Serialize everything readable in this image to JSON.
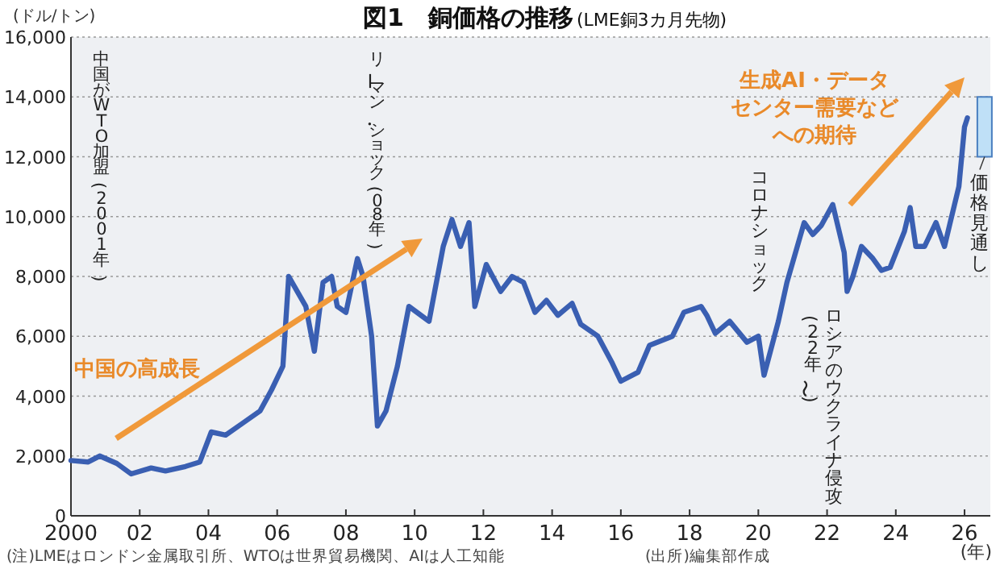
{
  "chart_data": {
    "type": "line",
    "title": "図1　銅価格の推移",
    "subtitle": "(LME銅3カ月先物)",
    "ylabel": "(ドル/トン)",
    "xlabel": "(年)",
    "annotations": [
      "中国がWTO加盟(2001年)",
      "リーマン・ショック(08年)",
      "コロナショック",
      "ロシアのウクライナ侵攻",
      "(22年〜)",
      "中国の高成長",
      "生成AI・データセンター需要などへの期待",
      "(注)LMEはロンドン金属取引所、WTOは世界貿易機関、AIは人工知能",
      "(出所)編集部作成"
    ],
    "xlim": [
      "2000",
      "2026-10"
    ],
    "xticks": [
      {
        "value": "2000",
        "label": "2000"
      },
      {
        "value": "2002",
        "label": "02"
      },
      {
        "value": "2004",
        "label": "04"
      },
      {
        "value": "2006",
        "label": "06"
      },
      {
        "value": "2008",
        "label": "08"
      },
      {
        "value": "2010",
        "label": "10"
      },
      {
        "value": "2012",
        "label": "12"
      },
      {
        "value": "2014",
        "label": "14"
      },
      {
        "value": "2016",
        "label": "16"
      },
      {
        "value": "2018",
        "label": "18"
      },
      {
        "value": "2020",
        "label": "20"
      },
      {
        "value": "2022",
        "label": "22"
      },
      {
        "value": "2024",
        "label": "24"
      },
      {
        "value": "2026",
        "label": "26"
      }
    ],
    "ylim": [
      0,
      16000
    ],
    "yticks": [
      {
        "value": 0,
        "label": "0"
      },
      {
        "value": 2000,
        "label": "2,000"
      },
      {
        "value": 4000,
        "label": "4,000"
      },
      {
        "value": 6000,
        "label": "6,000"
      },
      {
        "value": 8000,
        "label": "8,000"
      },
      {
        "value": 10000,
        "label": "10,000"
      },
      {
        "value": 12000,
        "label": "12,000"
      },
      {
        "value": 14000,
        "label": "14,000"
      },
      {
        "value": 16000,
        "label": "16,000"
      }
    ],
    "grid": "y",
    "legend": false,
    "series": [
      {
        "color": "#3a5fb2",
        "x": [
          "2000-01",
          "2000-07",
          "2000-11",
          "2001-05",
          "2001-10",
          "2002-05",
          "2002-10",
          "2003-05",
          "2003-10",
          "2004-02",
          "2004-07",
          "2005-01",
          "2005-07",
          "2005-11",
          "2006-03",
          "2006-05",
          "2006-08",
          "2006-11",
          "2007-02",
          "2007-05",
          "2007-08",
          "2007-10",
          "2008-01",
          "2008-05",
          "2008-07",
          "2008-10",
          "2008-12",
          "2009-03",
          "2009-07",
          "2009-11",
          "2010-06",
          "2010-08",
          "2010-11",
          "2011-02",
          "2011-05",
          "2011-08",
          "2011-10",
          "2012-02",
          "2012-07",
          "2012-11",
          "2013-03",
          "2013-07",
          "2013-11",
          "2014-03",
          "2014-08",
          "2014-11",
          "2015-05",
          "2015-10",
          "2016-01",
          "2016-07",
          "2016-11",
          "2017-07",
          "2017-11",
          "2018-05",
          "2018-07",
          "2018-10",
          "2019-03",
          "2019-09",
          "2020-01",
          "2020-03",
          "2020-08",
          "2020-11",
          "2021-05",
          "2021-08",
          "2021-11",
          "2022-03",
          "2022-07",
          "2022-08",
          "2022-10",
          "2023-01",
          "2023-05",
          "2023-08",
          "2023-11",
          "2024-04",
          "2024-06",
          "2024-08",
          "2024-11",
          "2025-03",
          "2025-06",
          "2025-08",
          "2025-11",
          "2026-01",
          "2026-02"
        ],
        "values": [
          1850,
          1800,
          2000,
          1750,
          1400,
          1600,
          1500,
          1650,
          1800,
          2800,
          2700,
          3100,
          3500,
          4200,
          5000,
          8000,
          7500,
          7000,
          5500,
          7800,
          8000,
          7000,
          6800,
          8600,
          8000,
          6000,
          3000,
          3500,
          5000,
          7000,
          6500,
          7500,
          9000,
          9900,
          9000,
          9800,
          7000,
          8400,
          7500,
          8000,
          7800,
          6800,
          7200,
          6700,
          7100,
          6400,
          6000,
          5100,
          4500,
          4800,
          5700,
          6000,
          6800,
          7000,
          6700,
          6100,
          6500,
          5800,
          6000,
          4700,
          6500,
          7800,
          9800,
          9400,
          9700,
          10400,
          8800,
          7500,
          8000,
          9000,
          8600,
          8200,
          8300,
          9500,
          10300,
          9000,
          9000,
          9800,
          9000,
          9800,
          11000,
          13000,
          13300
        ]
      },
      {
        "type": "bar",
        "name": "価格見通し",
        "color": "#bfe0f7",
        "x": [
          "2026-08"
        ],
        "base": [
          12000
        ],
        "values": [
          2000
        ]
      }
    ]
  }
}
